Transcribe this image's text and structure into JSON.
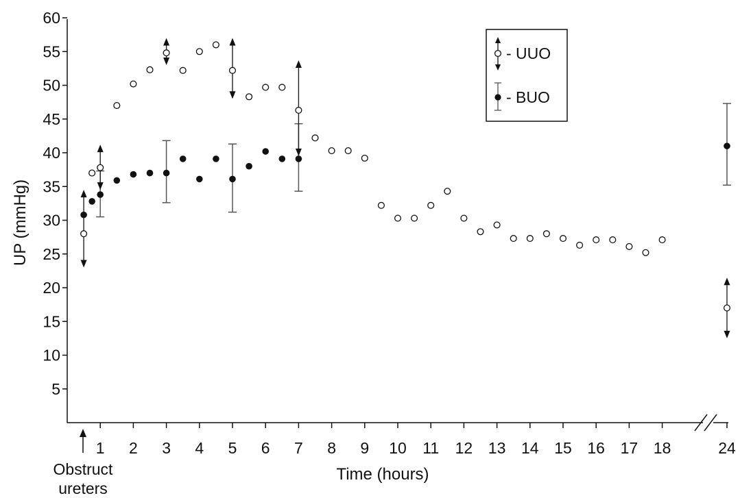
{
  "chart_data": {
    "type": "scatter",
    "title": "",
    "xlabel": "Time (hours)",
    "ylabel": "UP (mmHg)",
    "ylim": [
      0,
      60
    ],
    "yticks": [
      "5",
      "10",
      "15",
      "20",
      "25",
      "30",
      "35",
      "40",
      "45",
      "50",
      "55",
      "60"
    ],
    "xticks": [
      "1",
      "2",
      "3",
      "4",
      "5",
      "6",
      "7",
      "8",
      "9",
      "10",
      "11",
      "12",
      "13",
      "14",
      "15",
      "16",
      "17",
      "18",
      "24"
    ],
    "x_axis_break": "between 18 and 24",
    "annotation": {
      "line1": "Obstruct",
      "line2": "ureters",
      "x": 0
    },
    "legend": {
      "position": "top-right",
      "entries": [
        "- UUO",
        "- BUO"
      ]
    },
    "series": [
      {
        "name": "UUO",
        "marker": "open-circle",
        "points": [
          {
            "x": 0.5,
            "y": 28
          },
          {
            "x": 0.75,
            "y": 37
          },
          {
            "x": 1,
            "y": 37.8
          },
          {
            "x": 1.5,
            "y": 47
          },
          {
            "x": 2,
            "y": 50.2
          },
          {
            "x": 2.5,
            "y": 52.3
          },
          {
            "x": 3,
            "y": 54.8
          },
          {
            "x": 3.5,
            "y": 52.2
          },
          {
            "x": 4,
            "y": 55
          },
          {
            "x": 4.5,
            "y": 56
          },
          {
            "x": 5,
            "y": 52.2
          },
          {
            "x": 5.5,
            "y": 48.3
          },
          {
            "x": 6,
            "y": 49.7
          },
          {
            "x": 6.5,
            "y": 49.7
          },
          {
            "x": 7,
            "y": 46.3
          },
          {
            "x": 7.5,
            "y": 42.2
          },
          {
            "x": 8,
            "y": 40.3
          },
          {
            "x": 8.5,
            "y": 40.3
          },
          {
            "x": 9,
            "y": 39.2
          },
          {
            "x": 9.5,
            "y": 32.2
          },
          {
            "x": 10,
            "y": 30.3
          },
          {
            "x": 10.5,
            "y": 30.3
          },
          {
            "x": 11,
            "y": 32.2
          },
          {
            "x": 11.5,
            "y": 34.3
          },
          {
            "x": 12,
            "y": 30.3
          },
          {
            "x": 12.5,
            "y": 28.3
          },
          {
            "x": 13,
            "y": 29.3
          },
          {
            "x": 13.5,
            "y": 27.3
          },
          {
            "x": 14,
            "y": 27.3
          },
          {
            "x": 14.5,
            "y": 28
          },
          {
            "x": 15,
            "y": 27.3
          },
          {
            "x": 15.5,
            "y": 26.3
          },
          {
            "x": 16,
            "y": 27.1
          },
          {
            "x": 16.5,
            "y": 27.1
          },
          {
            "x": 17,
            "y": 26.1
          },
          {
            "x": 17.5,
            "y": 25.2
          },
          {
            "x": 18,
            "y": 27.1
          },
          {
            "x": 24,
            "y": 17
          }
        ],
        "error_arrows": [
          {
            "x": 0.5,
            "low": 23,
            "high": 34.5
          },
          {
            "x": 1,
            "low": 34.5,
            "high": 41.2
          },
          {
            "x": 3,
            "low": 53,
            "high": 57
          },
          {
            "x": 5,
            "low": 48,
            "high": 57
          },
          {
            "x": 7,
            "low": 39.5,
            "high": 53.7
          },
          {
            "x": 24,
            "low": 12.5,
            "high": 21.5
          }
        ]
      },
      {
        "name": "BUO",
        "marker": "filled-circle",
        "points": [
          {
            "x": 0.5,
            "y": 30.8
          },
          {
            "x": 0.75,
            "y": 32.8
          },
          {
            "x": 1,
            "y": 33.8
          },
          {
            "x": 1.5,
            "y": 35.9
          },
          {
            "x": 2,
            "y": 36.8
          },
          {
            "x": 2.5,
            "y": 37
          },
          {
            "x": 3,
            "y": 37
          },
          {
            "x": 3.5,
            "y": 39.1
          },
          {
            "x": 4,
            "y": 36.1
          },
          {
            "x": 4.5,
            "y": 39.1
          },
          {
            "x": 5,
            "y": 36.1
          },
          {
            "x": 5.5,
            "y": 38
          },
          {
            "x": 6,
            "y": 40.2
          },
          {
            "x": 6.5,
            "y": 39.1
          },
          {
            "x": 7,
            "y": 39.1
          },
          {
            "x": 24,
            "y": 41
          }
        ],
        "error_bars": [
          {
            "x": 1,
            "low": 30.5,
            "high": 37.3
          },
          {
            "x": 3,
            "low": 32.6,
            "high": 41.8
          },
          {
            "x": 5,
            "low": 31.2,
            "high": 41.3
          },
          {
            "x": 7,
            "low": 34.3,
            "high": 44.3
          },
          {
            "x": 24,
            "low": 35.2,
            "high": 47.3
          }
        ]
      }
    ]
  }
}
